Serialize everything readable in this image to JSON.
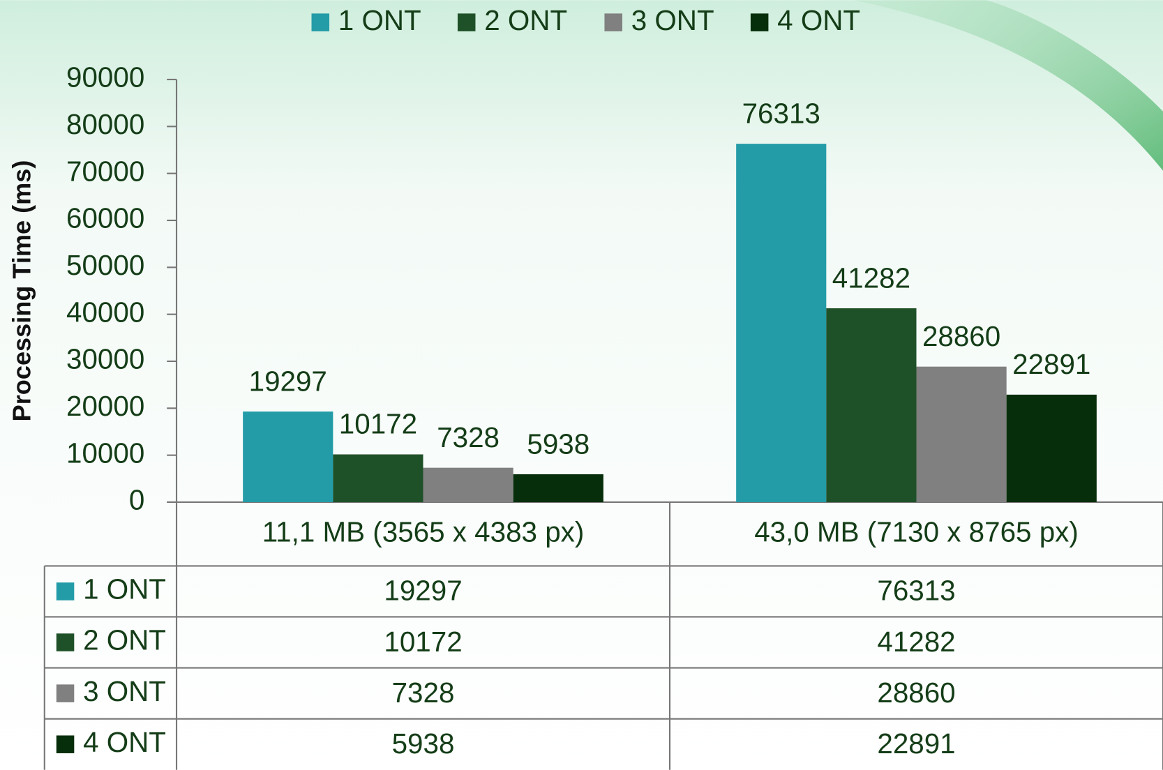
{
  "chart_data": {
    "type": "bar",
    "y_label": "Processing Time (ms)",
    "categories": [
      "11,1 MB (3565 x 4383 px)",
      "43,0 MB (7130 x 8765 px)"
    ],
    "series": [
      {
        "name": "1 ONT",
        "color": "#239ca8",
        "values": [
          19297,
          76313
        ]
      },
      {
        "name": "2 ONT",
        "color": "#1f5128",
        "values": [
          10172,
          41282
        ]
      },
      {
        "name": "3 ONT",
        "color": "#808080",
        "values": [
          7328,
          28860
        ]
      },
      {
        "name": "4 ONT",
        "color": "#062e0a",
        "values": [
          5938,
          22891
        ]
      }
    ],
    "ylim": [
      0,
      90000
    ],
    "yticks": [
      0,
      10000,
      20000,
      30000,
      40000,
      50000,
      60000,
      70000,
      80000,
      90000
    ],
    "legend": "top",
    "data_table": true
  }
}
